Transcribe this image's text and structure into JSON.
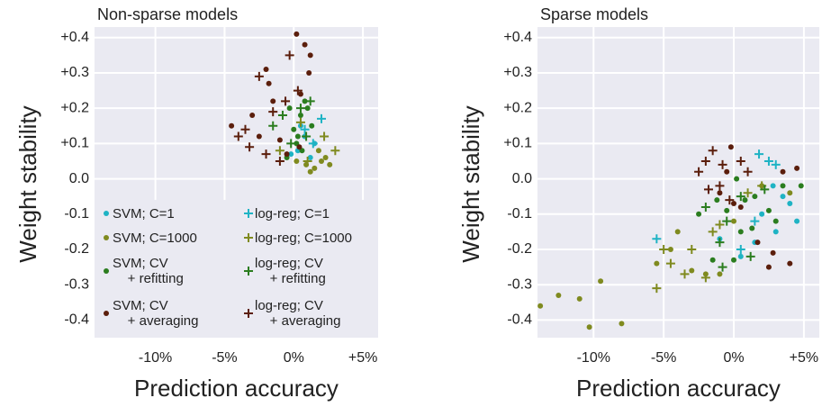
{
  "chart_data": [
    {
      "type": "scatter",
      "title": "Non-sparse models",
      "xlabel": "Prediction accuracy",
      "ylabel": "Weight stability",
      "xlim": [
        -14.4,
        6.1
      ],
      "ylim": [
        -0.45,
        0.43
      ],
      "xticks": [
        {
          "value": -10,
          "label": "-10%"
        },
        {
          "value": -5,
          "label": "-5%"
        },
        {
          "value": 0,
          "label": "0%"
        },
        {
          "value": 5,
          "label": "+5%"
        }
      ],
      "yticks": [
        {
          "value": 0.4,
          "label": "+0.4"
        },
        {
          "value": 0.3,
          "label": "+0.3"
        },
        {
          "value": 0.2,
          "label": "+0.2"
        },
        {
          "value": 0.1,
          "label": "+0.1"
        },
        {
          "value": 0,
          "label": "0.0"
        },
        {
          "value": -0.1,
          "label": "-0.1"
        },
        {
          "value": -0.2,
          "label": "-0.2"
        },
        {
          "value": -0.3,
          "label": "-0.3"
        },
        {
          "value": -0.4,
          "label": "-0.4"
        }
      ],
      "grid": true,
      "legend": "lower left",
      "series": [
        {
          "name": "SVM; C=1",
          "color": "#1fb3c4",
          "marker": "circle",
          "x": [
            0.3,
            0.8,
            1.2,
            0.5,
            1.5,
            -0.2
          ],
          "values": [
            0.08,
            0.12,
            0.06,
            0.15,
            0.1,
            0.07
          ]
        },
        {
          "name": "SVM; C=1000",
          "color": "#7f8a1f",
          "marker": "circle",
          "x": [
            1.5,
            2,
            1.8,
            0.9,
            2.3,
            0.2,
            1.2,
            2.6
          ],
          "values": [
            0.03,
            0.05,
            0.08,
            0.04,
            0.06,
            0.05,
            0.02,
            0.04
          ]
        },
        {
          "name": "SVM; CV\n    + refitting",
          "color": "#2b7d1f",
          "marker": "circle",
          "x": [
            0.2,
            0.5,
            0.8,
            0,
            -0.5,
            1,
            0.3,
            -0.3,
            0.6,
            1.3
          ],
          "values": [
            0.1,
            0.18,
            0.22,
            0.14,
            0.06,
            0.2,
            0.12,
            0.2,
            0.08,
            0.15
          ]
        },
        {
          "name": "SVM; CV\n    + averaging",
          "color": "#5b1e0c",
          "marker": "circle",
          "x": [
            0.2,
            0.8,
            1.2,
            -2,
            -1.5,
            0.5,
            -3,
            -4.5,
            -2.5,
            -1,
            0.4,
            -0.5,
            1.1,
            -1.8
          ],
          "values": [
            0.41,
            0.38,
            0.35,
            0.31,
            0.22,
            0.24,
            0.18,
            0.15,
            0.12,
            0.11,
            0.09,
            0.07,
            0.3,
            0.27
          ]
        },
        {
          "name": "log-reg; C=1",
          "color": "#1fb3c4",
          "marker": "plus",
          "x": [
            2,
            0.8,
            1.4
          ],
          "values": [
            0.17,
            0.14,
            0.1
          ]
        },
        {
          "name": "log-reg; C=1000",
          "color": "#7f8a1f",
          "marker": "plus",
          "x": [
            3,
            1,
            -1,
            2.2,
            0.5
          ],
          "values": [
            0.08,
            0.05,
            0.08,
            0.12,
            0.16
          ]
        },
        {
          "name": "log-reg; CV\n    + refitting",
          "color": "#2b7d1f",
          "marker": "plus",
          "x": [
            -0.8,
            0.5,
            1.2,
            -1.5,
            0.9,
            -0.2
          ],
          "values": [
            0.18,
            0.2,
            0.22,
            0.15,
            0.12,
            0.1
          ]
        },
        {
          "name": "log-reg; CV\n    + averaging",
          "color": "#5b1e0c",
          "marker": "plus",
          "x": [
            -2.5,
            -0.3,
            -4,
            -3.2,
            -2,
            -1,
            0.3,
            -0.6,
            -3.5,
            -1.5
          ],
          "values": [
            0.29,
            0.35,
            0.12,
            0.09,
            0.07,
            0.05,
            0.25,
            0.22,
            0.14,
            0.19
          ]
        }
      ]
    },
    {
      "type": "scatter",
      "title": "Sparse models",
      "xlabel": "Prediction accuracy",
      "ylabel": "Weight stability",
      "xlim": [
        -14.0,
        6.1
      ],
      "ylim": [
        -0.45,
        0.43
      ],
      "xticks": [
        {
          "value": -10,
          "label": "-10%"
        },
        {
          "value": -5,
          "label": "-5%"
        },
        {
          "value": 0,
          "label": "0%"
        },
        {
          "value": 5,
          "label": "+5%"
        }
      ],
      "yticks": [
        {
          "value": 0.4,
          "label": "+0.4"
        },
        {
          "value": 0.3,
          "label": "+0.3"
        },
        {
          "value": 0.2,
          "label": "+0.2"
        },
        {
          "value": 0.1,
          "label": "+0.1"
        },
        {
          "value": 0,
          "label": "0.0"
        },
        {
          "value": -0.1,
          "label": "-0.1"
        },
        {
          "value": -0.2,
          "label": "-0.2"
        },
        {
          "value": -0.3,
          "label": "-0.3"
        },
        {
          "value": -0.4,
          "label": "-0.4"
        }
      ],
      "grid": true,
      "series": [
        {
          "color": "#1fb3c4",
          "marker": "circle",
          "x": [
            2,
            3.5,
            4.5,
            1.5,
            2.8,
            0.5,
            3,
            -1,
            4
          ],
          "values": [
            -0.1,
            -0.05,
            -0.12,
            -0.18,
            -0.02,
            -0.22,
            -0.15,
            -0.17,
            -0.07
          ]
        },
        {
          "color": "#7f8a1f",
          "marker": "circle",
          "x": [
            -10.3,
            -12.5,
            -11,
            -13.8,
            -9.5,
            -8,
            -5.5,
            -4.5,
            -3,
            -2,
            -1,
            -4,
            0,
            2,
            4
          ],
          "values": [
            -0.42,
            -0.33,
            -0.34,
            -0.36,
            -0.29,
            -0.41,
            -0.24,
            -0.2,
            -0.26,
            -0.27,
            -0.27,
            -0.15,
            -0.12,
            -0.02,
            -0.04
          ]
        },
        {
          "color": "#2b7d1f",
          "marker": "circle",
          "x": [
            -1.5,
            0,
            0.5,
            1.5,
            2.5,
            3.5,
            -0.5,
            0.8,
            4.8,
            3,
            -2.5,
            -1.2,
            0.2,
            1.3
          ],
          "values": [
            -0.23,
            -0.23,
            -0.15,
            -0.05,
            -0.09,
            -0.02,
            -0.09,
            -0.06,
            -0.02,
            -0.12,
            -0.1,
            -0.06,
            0,
            -0.14
          ]
        },
        {
          "color": "#5b1e0c",
          "marker": "circle",
          "x": [
            4,
            2.8,
            1.7,
            0.5,
            -0.5,
            3.5,
            4.5,
            -1,
            0,
            2.5,
            -0.2
          ],
          "values": [
            -0.24,
            -0.21,
            -0.18,
            -0.08,
            0.02,
            0.02,
            0.03,
            -0.04,
            -0.07,
            -0.25,
            0.09
          ]
        },
        {
          "color": "#1fb3c4",
          "marker": "plus",
          "x": [
            -5.5,
            1.8,
            2.5,
            3,
            1.5,
            0.5
          ],
          "values": [
            -0.17,
            0.07,
            0.05,
            0.04,
            -0.12,
            -0.2
          ]
        },
        {
          "color": "#7f8a1f",
          "marker": "plus",
          "x": [
            -5,
            -4.5,
            -3,
            -5.5,
            -2,
            -1,
            1,
            -1.5,
            2,
            -3.5
          ],
          "values": [
            -0.2,
            -0.24,
            -0.2,
            -0.31,
            -0.28,
            -0.13,
            -0.04,
            -0.15,
            -0.02,
            -0.27
          ]
        },
        {
          "color": "#2b7d1f",
          "marker": "plus",
          "x": [
            -2,
            -1,
            -0.5,
            0.5,
            1.2,
            -0.8,
            2.2
          ],
          "values": [
            -0.08,
            -0.18,
            -0.12,
            -0.05,
            -0.22,
            -0.25,
            -0.03
          ]
        },
        {
          "color": "#5b1e0c",
          "marker": "plus",
          "x": [
            -2,
            -1.5,
            -2.5,
            -1,
            0.5,
            -0.3,
            -1.8,
            -0.8,
            1
          ],
          "values": [
            0.05,
            0.08,
            0.02,
            -0.02,
            0.05,
            -0.06,
            -0.03,
            0.04,
            0.02
          ]
        }
      ]
    }
  ]
}
